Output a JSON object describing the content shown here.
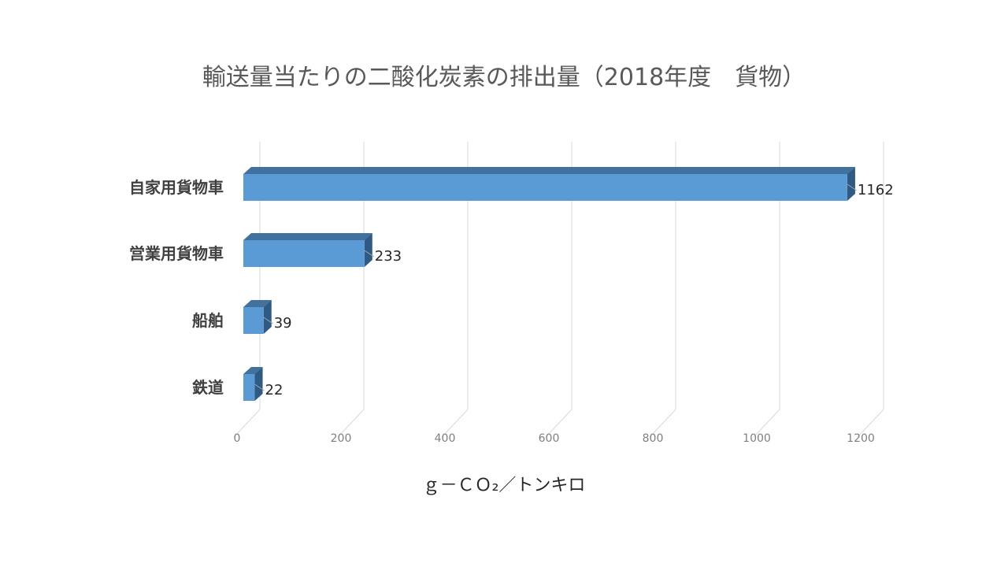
{
  "chart_data": {
    "type": "bar",
    "orientation": "horizontal",
    "style": "3d",
    "title": "輸送量当たりの二酸化炭素の排出量（2018年度　貨物）",
    "xlabel": "ｇ－ＣＯ₂／トンキロ",
    "ylabel": "",
    "categories": [
      "自家用貨物車",
      "営業用貨物車",
      "船舶",
      "鉄道"
    ],
    "values": [
      1162,
      233,
      39,
      22
    ],
    "data_labels": [
      "1162",
      "233",
      "39",
      "22"
    ],
    "xlim": [
      0,
      1200
    ],
    "ticks": [
      0,
      200,
      400,
      600,
      800,
      1000,
      1200
    ],
    "tick_labels": [
      "0",
      "200",
      "400",
      "600",
      "800",
      "1000",
      "1200"
    ],
    "grid": true,
    "legend": "none",
    "colors": {
      "bar_front": "#5b9bd5",
      "bar_top": "#41719c",
      "bar_side": "#2e5a84",
      "grid": "#d9d9d9"
    }
  }
}
